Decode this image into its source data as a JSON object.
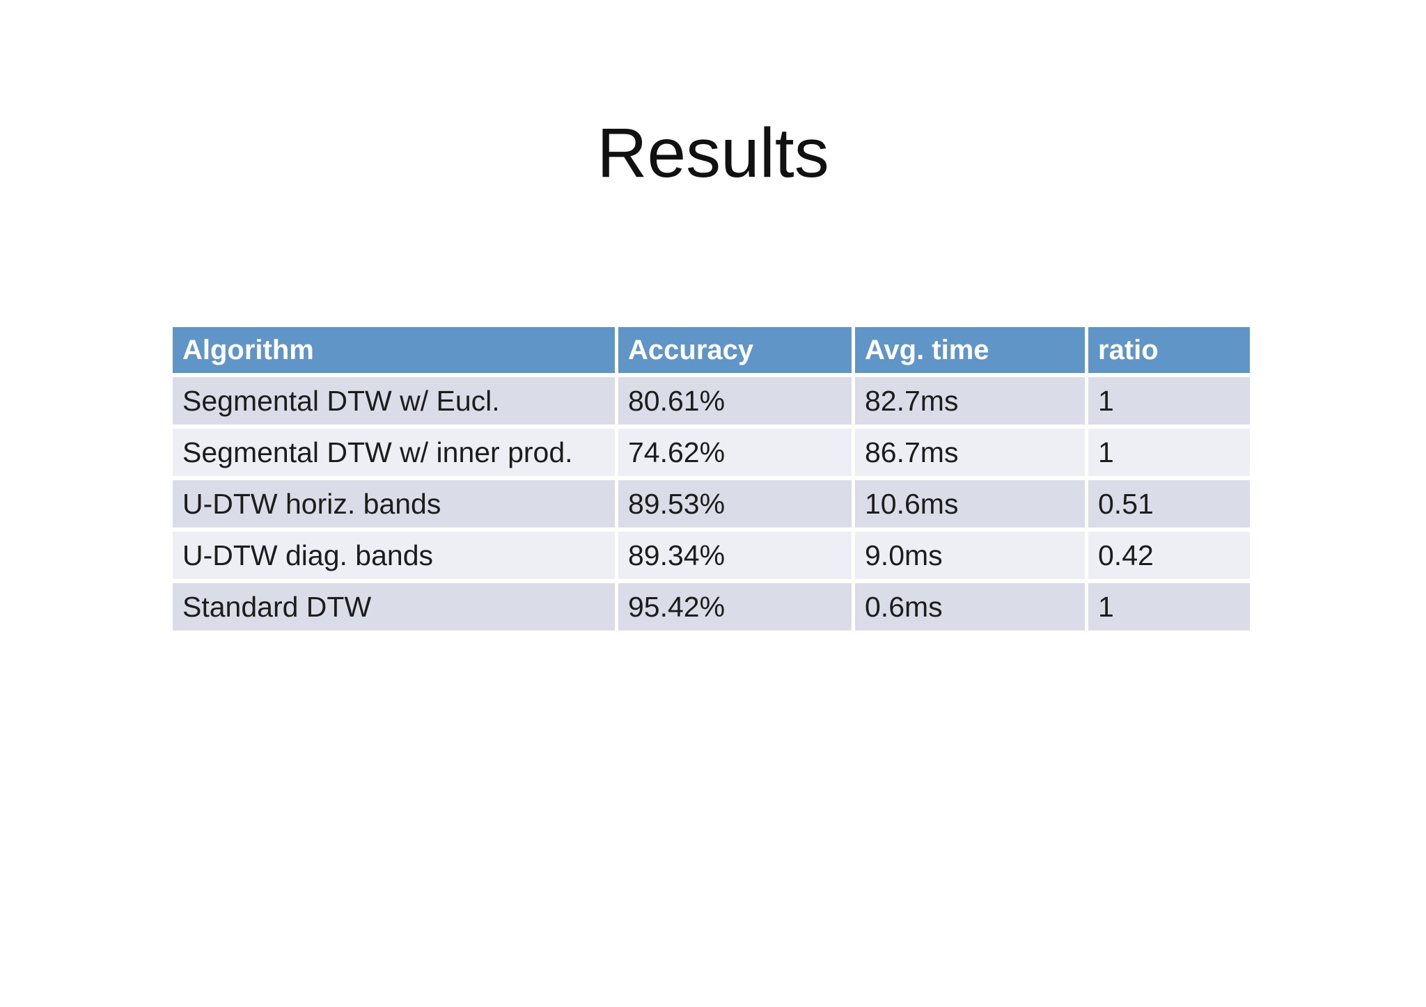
{
  "slide": {
    "title": "Results"
  },
  "colors": {
    "background": "#ffffff",
    "header_bg": "#6095c7",
    "header_text": "#ffffff",
    "row_band_dark": "#dadde7",
    "row_band_light": "#edeff5",
    "body_text": "#1c1c1c",
    "title_text": "#111111"
  },
  "table": {
    "columns": [
      "Algorithm",
      "Accuracy",
      "Avg. time",
      "ratio"
    ],
    "rows": [
      {
        "algorithm": "Segmental DTW w/ Eucl.",
        "accuracy": "80.61%",
        "avg_time": "82.7ms",
        "ratio": "1"
      },
      {
        "algorithm": "Segmental DTW w/ inner prod.",
        "accuracy": "74.62%",
        "avg_time": "86.7ms",
        "ratio": "1"
      },
      {
        "algorithm": "U-DTW horiz. bands",
        "accuracy": "89.53%",
        "avg_time": "10.6ms",
        "ratio": "0.51"
      },
      {
        "algorithm": "U-DTW diag. bands",
        "accuracy": "89.34%",
        "avg_time": "9.0ms",
        "ratio": "0.42"
      },
      {
        "algorithm": "Standard DTW",
        "accuracy": "95.42%",
        "avg_time": "0.6ms",
        "ratio": "1"
      }
    ]
  }
}
